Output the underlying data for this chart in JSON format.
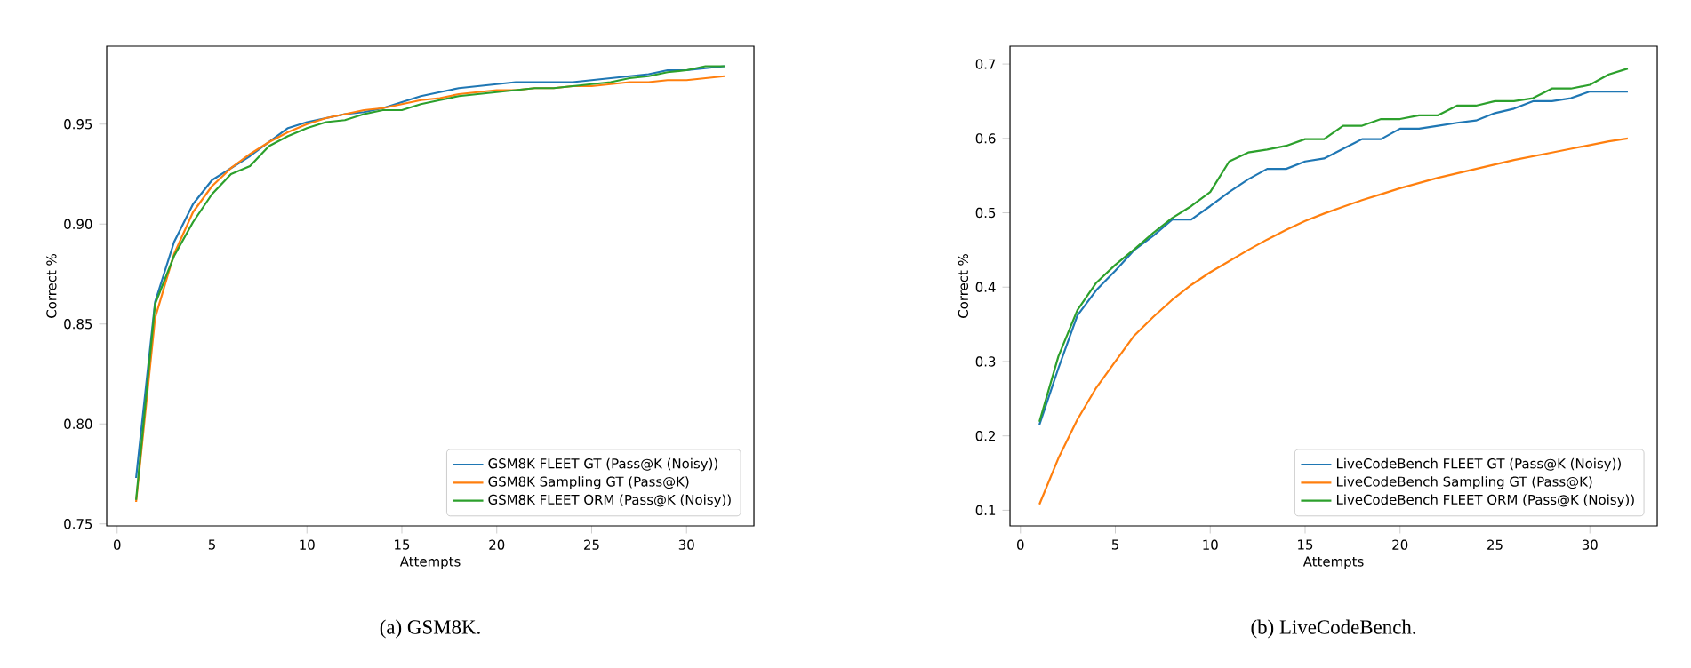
{
  "chart_data": [
    {
      "type": "line",
      "xlabel": "Attempts",
      "ylabel": "Correct %",
      "legend": "bottom right",
      "marker": "none",
      "line_style": "solid",
      "x": [
        1,
        2,
        3,
        4,
        5,
        6,
        7,
        8,
        9,
        10,
        11,
        12,
        13,
        14,
        15,
        16,
        17,
        18,
        19,
        20,
        21,
        22,
        23,
        24,
        25,
        26,
        27,
        28,
        29,
        30,
        31,
        32
      ],
      "xlim": [
        -0.55,
        33.55
      ],
      "ylim": [
        0.749,
        0.989
      ],
      "xticks": [
        0,
        5,
        10,
        15,
        20,
        25,
        30
      ],
      "yticks": [
        0.75,
        {
          "value": 0.8,
          "label": "0.80"
        },
        0.85,
        {
          "value": 0.9,
          "label": "0.90"
        },
        0.95
      ],
      "series": [
        {
          "name": "GSM8K FLEET GT (Pass@K (Noisy))",
          "color": "#1f77b4",
          "values": [
            0.773,
            0.861,
            0.891,
            0.91,
            0.922,
            0.928,
            0.934,
            0.941,
            0.948,
            0.951,
            0.953,
            0.955,
            0.956,
            0.958,
            0.961,
            0.964,
            0.966,
            0.968,
            0.969,
            0.97,
            0.971,
            0.971,
            0.971,
            0.971,
            0.972,
            0.973,
            0.974,
            0.975,
            0.977,
            0.977,
            0.978,
            0.979
          ]
        },
        {
          "name": "GSM8K Sampling GT (Pass@K)",
          "color": "#ff7f0e",
          "values": [
            0.761,
            0.853,
            0.885,
            0.906,
            0.919,
            0.928,
            0.935,
            0.941,
            0.946,
            0.95,
            0.953,
            0.955,
            0.957,
            0.958,
            0.96,
            0.962,
            0.963,
            0.965,
            0.966,
            0.967,
            0.967,
            0.968,
            0.968,
            0.969,
            0.969,
            0.97,
            0.971,
            0.971,
            0.972,
            0.972,
            0.973,
            0.974
          ]
        },
        {
          "name": "GSM8K FLEET ORM (Pass@K (Noisy))",
          "color": "#2ca02c",
          "values": [
            0.762,
            0.86,
            0.884,
            0.901,
            0.915,
            0.925,
            0.929,
            0.939,
            0.944,
            0.948,
            0.951,
            0.952,
            0.955,
            0.957,
            0.957,
            0.96,
            0.962,
            0.964,
            0.965,
            0.966,
            0.967,
            0.968,
            0.968,
            0.969,
            0.97,
            0.971,
            0.973,
            0.974,
            0.976,
            0.977,
            0.979,
            0.979
          ]
        }
      ],
      "annotations": [
        "(a) GSM8K."
      ]
    },
    {
      "type": "line",
      "xlabel": "Attempts",
      "ylabel": "Correct %",
      "legend": "bottom right",
      "marker": "none",
      "line_style": "solid",
      "x": [
        1,
        2,
        3,
        4,
        5,
        6,
        7,
        8,
        9,
        10,
        11,
        12,
        13,
        14,
        15,
        16,
        17,
        18,
        19,
        20,
        21,
        22,
        23,
        24,
        25,
        26,
        27,
        28,
        29,
        30,
        31,
        32
      ],
      "xlim": [
        -0.55,
        33.55
      ],
      "ylim": [
        0.079,
        0.724
      ],
      "xticks": [
        0,
        5,
        10,
        15,
        20,
        25,
        30
      ],
      "yticks": [
        0.1,
        0.2,
        0.3,
        0.4,
        0.5,
        0.6,
        0.7
      ],
      "series": [
        {
          "name": "LiveCodeBench FLEET GT (Pass@K (Noisy))",
          "color": "#1f77b4",
          "values": [
            0.215,
            0.291,
            0.362,
            0.396,
            0.422,
            0.45,
            0.469,
            0.491,
            0.491,
            0.509,
            0.528,
            0.545,
            0.559,
            0.559,
            0.569,
            0.573,
            0.586,
            0.599,
            0.599,
            0.613,
            0.613,
            0.617,
            0.621,
            0.624,
            0.634,
            0.64,
            0.65,
            0.65,
            0.654,
            0.663,
            0.663,
            0.663
          ]
        },
        {
          "name": "LiveCodeBench Sampling GT (Pass@K)",
          "color": "#ff7f0e",
          "values": [
            0.108,
            0.17,
            0.222,
            0.265,
            0.3,
            0.335,
            0.36,
            0.383,
            0.403,
            0.42,
            0.435,
            0.45,
            0.464,
            0.477,
            0.489,
            0.499,
            0.508,
            0.517,
            0.525,
            0.533,
            0.54,
            0.547,
            0.553,
            0.559,
            0.565,
            0.571,
            0.576,
            0.581,
            0.586,
            0.591,
            0.596,
            0.6
          ]
        },
        {
          "name": "LiveCodeBench FLEET ORM (Pass@K (Noisy))",
          "color": "#2ca02c",
          "values": [
            0.219,
            0.307,
            0.369,
            0.406,
            0.43,
            0.451,
            0.473,
            0.493,
            0.509,
            0.528,
            0.569,
            0.581,
            0.585,
            0.59,
            0.599,
            0.599,
            0.617,
            0.617,
            0.626,
            0.626,
            0.631,
            0.631,
            0.644,
            0.644,
            0.65,
            0.65,
            0.654,
            0.667,
            0.667,
            0.672,
            0.686,
            0.694
          ]
        }
      ],
      "annotations": [
        "(b) LiveCodeBench."
      ]
    }
  ]
}
